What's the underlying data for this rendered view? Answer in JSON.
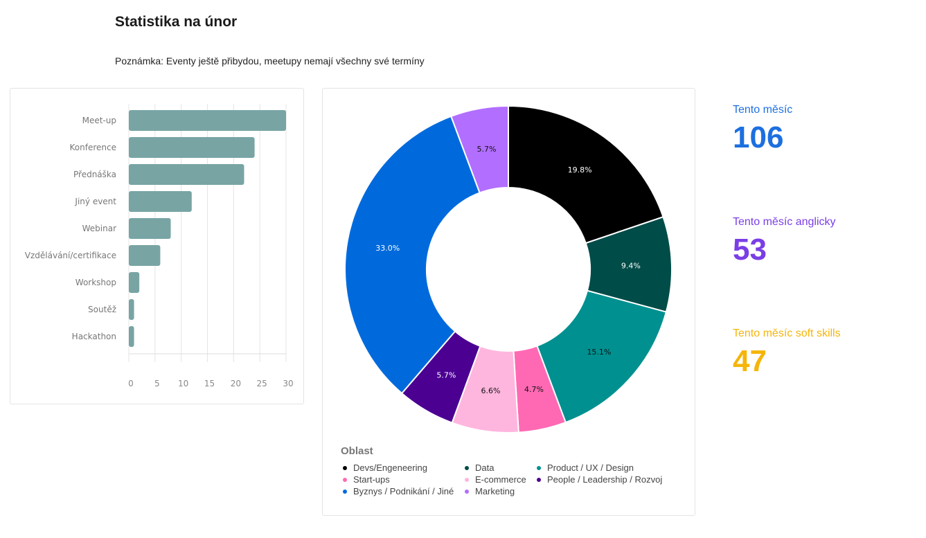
{
  "header": {
    "title": "Statistika na únor",
    "note": "Poznámka: Eventy ještě přibydou, meetupy nemají všechny své termíny"
  },
  "stats": [
    {
      "label": "Tento měsíc",
      "value": "106",
      "color": "#1d6fe0"
    },
    {
      "label": "Tento měsíc anglicky",
      "value": "53",
      "color": "#7a3ee6"
    },
    {
      "label": "Tento měsíc soft skills",
      "value": "47",
      "color": "#f5b50a"
    }
  ],
  "chart_data": [
    {
      "type": "bar",
      "orientation": "horizontal",
      "categories": [
        "Meet-up",
        "Konference",
        "Přednáška",
        "Jiný event",
        "Webinar",
        "Vzdělávání/certifikace",
        "Workshop",
        "Soutěž",
        "Hackathon"
      ],
      "values": [
        30,
        24,
        22,
        12,
        8,
        6,
        2,
        1,
        1
      ],
      "xlim": [
        0,
        30
      ],
      "xticks": [
        "0",
        "5",
        "10",
        "15",
        "20",
        "25",
        "30"
      ],
      "color": "#78a4a4",
      "grid": true
    },
    {
      "type": "pie",
      "donut": true,
      "legend_title": "Oblast",
      "legend_placement": "bottom",
      "slices": [
        {
          "label": "Devs/Engeneering",
          "value": 19.8,
          "text": "19.8%",
          "color": "#000000",
          "text_color": "#ffffff"
        },
        {
          "label": "Data",
          "value": 9.4,
          "text": "9.4%",
          "color": "#004c48",
          "text_color": "#ffffff"
        },
        {
          "label": "Product / UX / Design",
          "value": 15.1,
          "text": "15.1%",
          "color": "#009090",
          "text_color": "#111111"
        },
        {
          "label": "Start-ups",
          "value": 4.7,
          "text": "4.7%",
          "color": "#ff69b4",
          "text_color": "#111111"
        },
        {
          "label": "E-commerce",
          "value": 6.6,
          "text": "6.6%",
          "color": "#ffb6de",
          "text_color": "#111111"
        },
        {
          "label": "People / Leadership / Rozvoj",
          "value": 5.7,
          "text": "5.7%",
          "color": "#4b0092",
          "text_color": "#ffffff"
        },
        {
          "label": "Byznys / Podnikání / Jiné",
          "value": 33.0,
          "text": "33.0%",
          "color": "#006add",
          "text_color": "#ffffff"
        },
        {
          "label": "Marketing",
          "value": 5.7,
          "text": "5.7%",
          "color": "#b26eff",
          "text_color": "#111111"
        }
      ],
      "legend_order": [
        0,
        1,
        2,
        3,
        4,
        5,
        6,
        7
      ]
    }
  ]
}
